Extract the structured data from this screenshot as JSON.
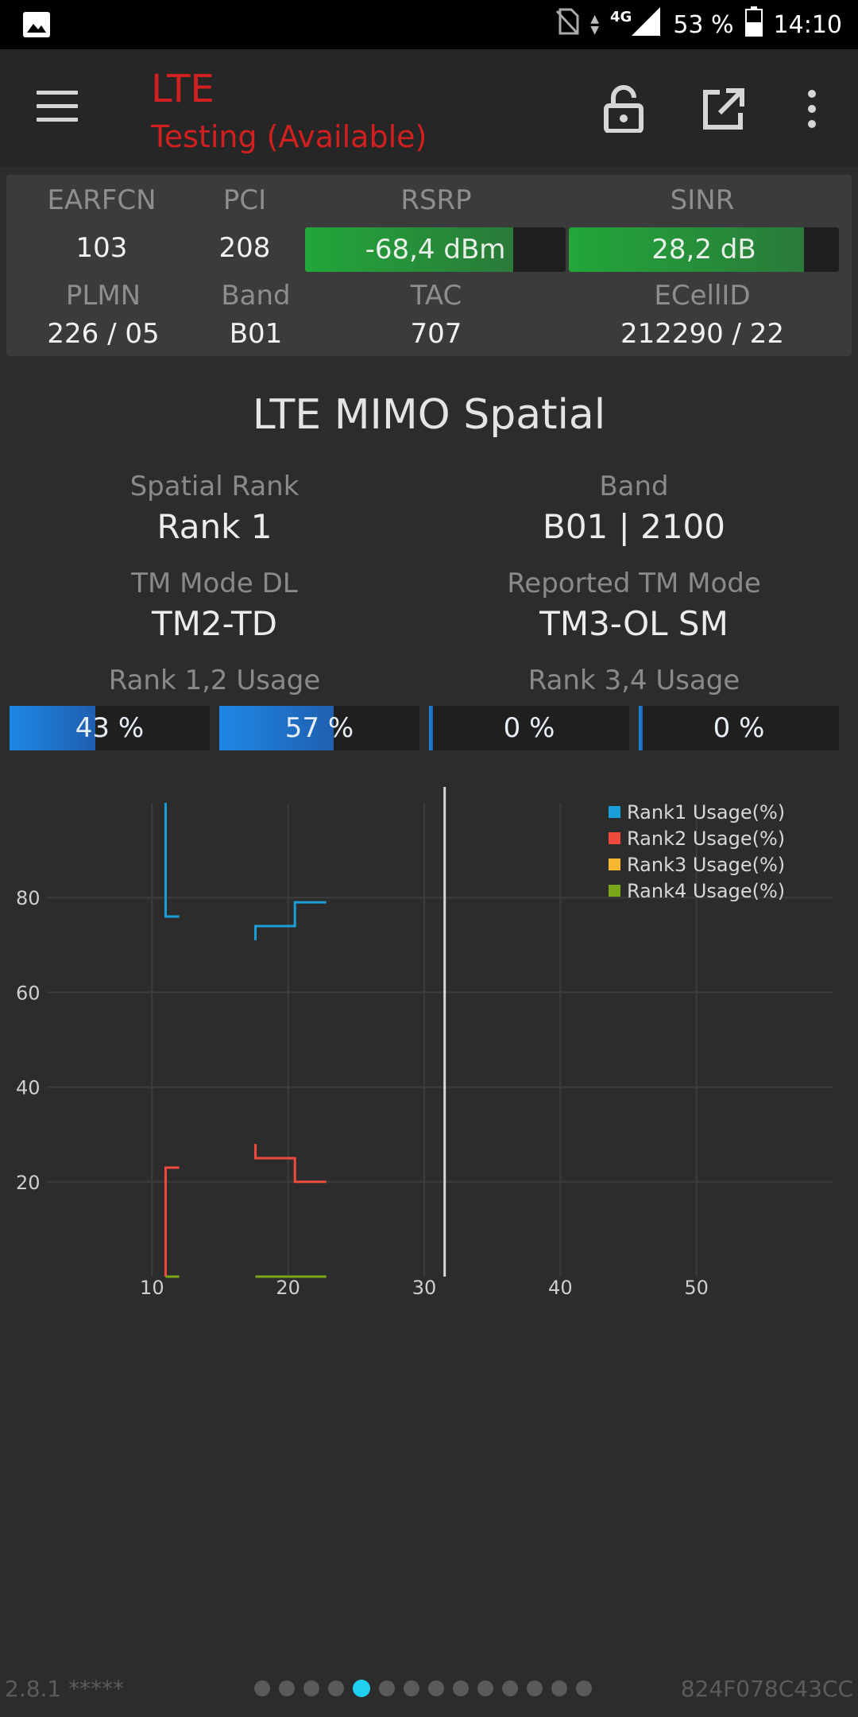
{
  "status_bar": {
    "icons": [
      "image-icon",
      "no-sim-icon",
      "data-arrows-icon",
      "signal-icon",
      "battery-icon"
    ],
    "network": "4G",
    "battery": "53 %",
    "time": "14:10"
  },
  "app_bar": {
    "title": "LTE",
    "subtitle": "Testing (Available)",
    "title_color": "#d21f1f",
    "icons": [
      "menu-icon",
      "lock-open-icon",
      "open-external-icon",
      "more-vert-icon"
    ]
  },
  "cell_info": {
    "earfcn": {
      "label": "EARFCN",
      "value": "103"
    },
    "pci": {
      "label": "PCI",
      "value": "208"
    },
    "rsrp": {
      "label": "RSRP",
      "value": "-68,4 dBm",
      "fill_fraction": 0.8
    },
    "sinr": {
      "label": "SINR",
      "value": "28,2 dB",
      "fill_fraction": 0.87
    },
    "plmn": {
      "label": "PLMN",
      "value": "226 / 05"
    },
    "band": {
      "label": "Band",
      "value": "B01"
    },
    "tac": {
      "label": "TAC",
      "value": "707"
    },
    "ecellid": {
      "label": "ECellID",
      "value": "212290 / 22"
    },
    "meter_color": "#22a63a"
  },
  "section": {
    "title": "LTE MIMO Spatial",
    "spatial_rank": {
      "label": "Spatial Rank",
      "value": "Rank 1"
    },
    "band": {
      "label": "Band",
      "value": "B01 | 2100"
    },
    "tm_mode_dl": {
      "label": "TM Mode DL",
      "value": "TM2-TD"
    },
    "reported_tm": {
      "label": "Reported TM Mode",
      "value": "TM3-OL SM"
    },
    "rank12_label": "Rank 1,2 Usage",
    "rank34_label": "Rank 3,4 Usage",
    "bars": [
      {
        "text": "43 %",
        "percent": 43
      },
      {
        "text": "57 %",
        "percent": 57
      },
      {
        "text": "0 %",
        "percent": 0
      },
      {
        "text": "0 %",
        "percent": 0
      }
    ],
    "bar_color": "#1e88e5"
  },
  "chart_data": {
    "type": "line",
    "x_ticks": [
      "10",
      "20",
      "30",
      "40",
      "50"
    ],
    "y_ticks": [
      "20",
      "40",
      "60",
      "80"
    ],
    "xlim": [
      0,
      60
    ],
    "ylim": [
      0,
      100
    ],
    "grid": true,
    "legend_position": "top-right",
    "cursor_x": 31.5,
    "series": [
      {
        "name": "Rank1 Usage(%)",
        "color": "#1aa0d8",
        "segments": [
          [
            [
              11,
              100
            ],
            [
              11,
              76
            ],
            [
              12,
              76
            ]
          ],
          [
            [
              17.6,
              71
            ],
            [
              17.6,
              74
            ],
            [
              20.5,
              74
            ],
            [
              20.5,
              79
            ],
            [
              22.8,
              79
            ]
          ]
        ]
      },
      {
        "name": "Rank2 Usage(%)",
        "color": "#ef4a3c",
        "segments": [
          [
            [
              11,
              0
            ],
            [
              11,
              23
            ],
            [
              12,
              23
            ]
          ],
          [
            [
              17.6,
              28
            ],
            [
              17.6,
              25
            ],
            [
              20.5,
              25
            ],
            [
              20.5,
              20
            ],
            [
              22.8,
              20
            ]
          ]
        ]
      },
      {
        "name": "Rank3 Usage(%)",
        "color": "#f5b82e",
        "segments": []
      },
      {
        "name": "Rank4 Usage(%)",
        "color": "#7aa61a",
        "segments": [
          [
            [
              11,
              0
            ],
            [
              12,
              0
            ]
          ],
          [
            [
              17.6,
              0
            ],
            [
              22.8,
              0
            ]
          ]
        ]
      }
    ]
  },
  "footer": {
    "version": "2.8.1 *****",
    "device_id": "824F078C43CC",
    "page_count": 14,
    "active_page": 4
  }
}
